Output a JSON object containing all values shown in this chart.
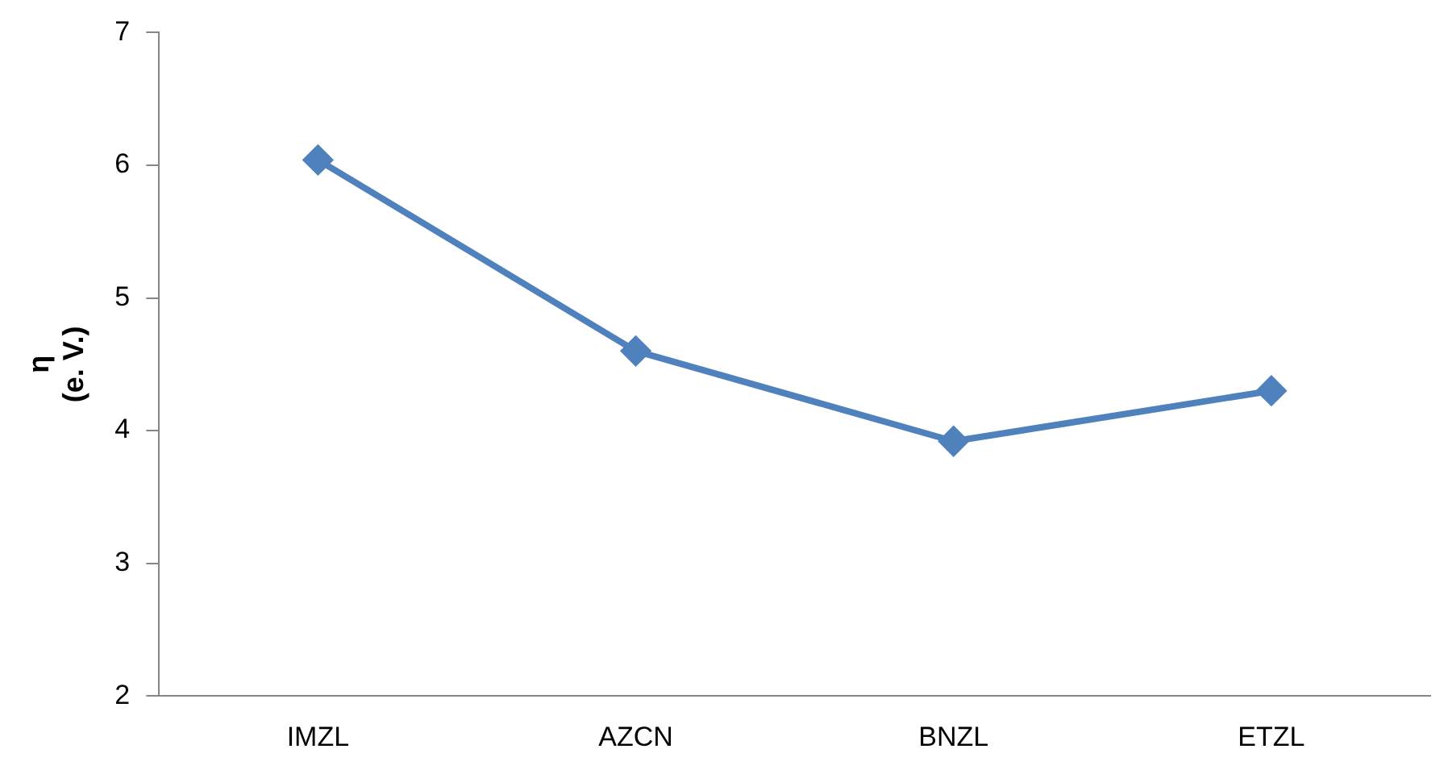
{
  "chart_data": {
    "type": "line",
    "ylabel": "η\n(e. V.)",
    "categories": [
      "IMZL",
      "AZCN",
      "BNZL",
      "ETZL"
    ],
    "series": [
      {
        "color": "#4f81bd",
        "values": [
          6.04,
          4.6,
          3.92,
          4.3
        ]
      }
    ],
    "ylim": [
      2,
      7
    ],
    "yticks": [
      2,
      3,
      4,
      5,
      6,
      7
    ],
    "grid": false,
    "legend": false,
    "marker": "diamond",
    "line_style": "solid"
  }
}
